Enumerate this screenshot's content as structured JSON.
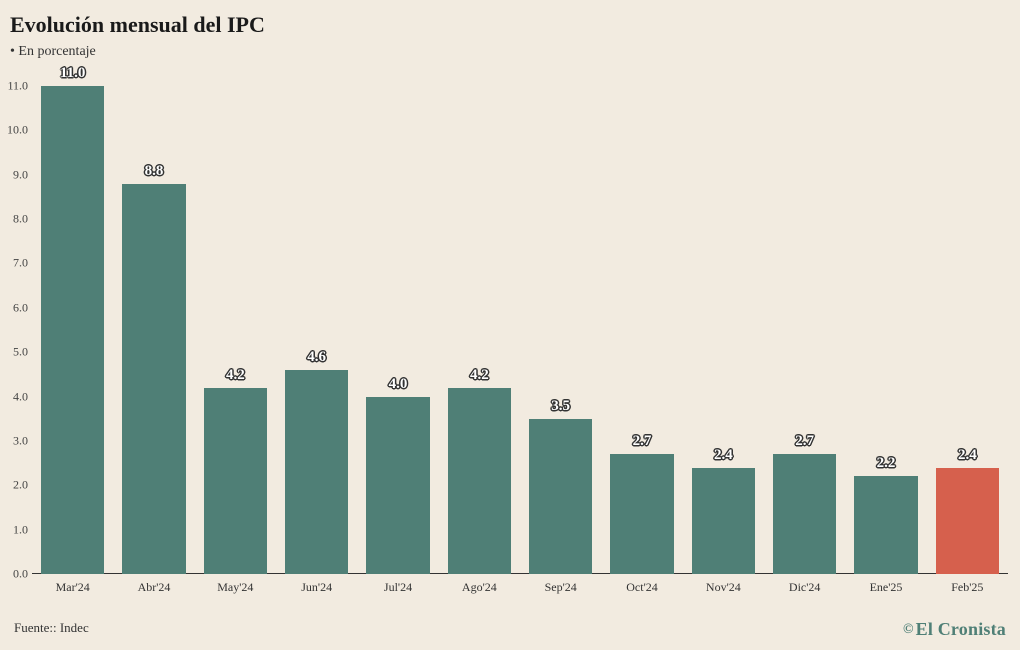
{
  "title": "Evolución mensual del IPC",
  "subtitle": "En porcentaje",
  "source_label": "Fuente:: Indec",
  "brand": "El Cronista",
  "chart": {
    "type": "bar",
    "background_color": "#f2ebe0",
    "text_color": "#333333",
    "bar_color_default": "#4f7f76",
    "bar_color_highlight": "#d6604d",
    "title_fontsize": 22,
    "subtitle_fontsize": 14,
    "tick_fontsize": 12,
    "barlabel_fontsize": 15,
    "ylim": [
      0.0,
      11.0
    ],
    "ytick_step": 1.0,
    "bar_width_ratio": 0.78,
    "categories": [
      "Mar'24",
      "Abr'24",
      "May'24",
      "Jun'24",
      "Jul'24",
      "Ago'24",
      "Sep'24",
      "Oct'24",
      "Nov'24",
      "Dic'24",
      "Ene'25",
      "Feb'25"
    ],
    "values": [
      11.0,
      8.8,
      4.2,
      4.6,
      4.0,
      4.2,
      3.5,
      2.7,
      2.4,
      2.7,
      2.2,
      2.4
    ],
    "highlight_index": 11,
    "label_outline_color": "#333333"
  }
}
